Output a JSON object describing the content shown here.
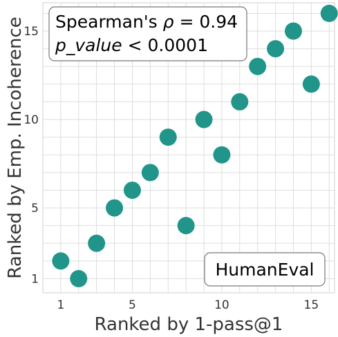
{
  "chart_data": {
    "type": "scatter",
    "title": "",
    "xlabel": "Ranked by 1-pass@1",
    "ylabel": "Ranked by Emp. Incoherence",
    "xlim": [
      0,
      16.3
    ],
    "ylim": [
      0.2,
      16.6
    ],
    "xticks": [
      1,
      5,
      10,
      15
    ],
    "yticks": [
      1,
      5,
      10,
      15
    ],
    "grid": true,
    "marker_color": "#21958a",
    "points": [
      {
        "x": 1,
        "y": 2
      },
      {
        "x": 2,
        "y": 1
      },
      {
        "x": 3,
        "y": 3
      },
      {
        "x": 4,
        "y": 5
      },
      {
        "x": 5,
        "y": 6
      },
      {
        "x": 6,
        "y": 7
      },
      {
        "x": 7,
        "y": 9
      },
      {
        "x": 8,
        "y": 4
      },
      {
        "x": 9,
        "y": 10
      },
      {
        "x": 10,
        "y": 8
      },
      {
        "x": 11,
        "y": 11
      },
      {
        "x": 12,
        "y": 13
      },
      {
        "x": 13,
        "y": 14
      },
      {
        "x": 14,
        "y": 15
      },
      {
        "x": 15,
        "y": 12
      },
      {
        "x": 16,
        "y": 16
      }
    ],
    "annotations": {
      "stat_line1_prefix": "Spearman's ",
      "stat_line1_symbol": "ρ",
      "stat_line1_value": " = 0.94",
      "stat_line2_symbol": "p_value",
      "stat_line2_value": " < 0.0001",
      "dataset_badge": "HumanEval"
    }
  }
}
